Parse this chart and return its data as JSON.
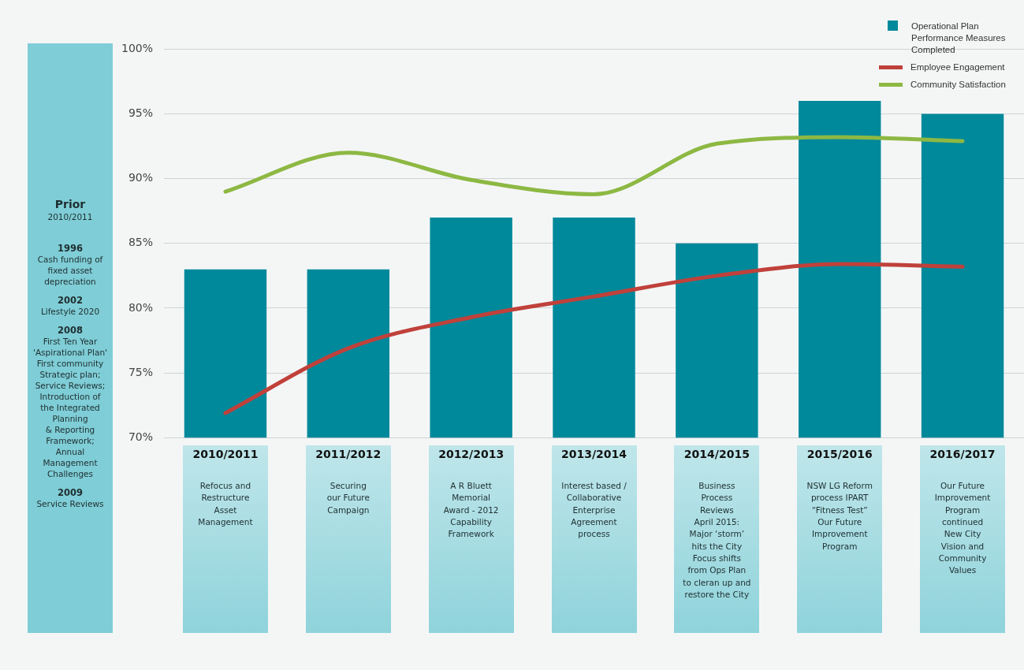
{
  "chart_data": {
    "type": "bar",
    "categories": [
      "2010/2011",
      "2011/2012",
      "2012/2013",
      "2013/2014",
      "2014/2015",
      "2015/2016",
      "2016/2017"
    ],
    "series": [
      {
        "name": "Operational  Plan Performance Measures Completed",
        "color": "#00899b",
        "values": [
          83,
          83,
          87,
          87,
          85,
          96,
          95
        ]
      },
      {
        "name": "Employee Engagement",
        "type": "line",
        "color": "#c0413b",
        "values": [
          71.9,
          76.9,
          79.3,
          80.9,
          82.5,
          83.4,
          83.2
        ]
      },
      {
        "name": "Community Satisfaction",
        "type": "line",
        "color": "#8db843",
        "values": [
          89,
          92,
          89.9,
          88.8,
          92.7,
          93.2,
          92.9
        ]
      }
    ],
    "ylim": [
      70,
      100
    ],
    "yticks": [
      {
        "value": 70,
        "label": "70%"
      },
      {
        "value": 75,
        "label": "75%"
      },
      {
        "value": 80,
        "label": "80%"
      },
      {
        "value": 85,
        "label": "85%"
      },
      {
        "value": 90,
        "label": "90%"
      },
      {
        "value": 95,
        "label": "95%"
      },
      {
        "value": 100,
        "label": "100%"
      }
    ],
    "grid": "y",
    "legend": "top right",
    "marker": "none",
    "line_style": "solid",
    "annotations": [
      "Prior\n2010/2011",
      "1996\nCash funding of\nfixed asset\ndepreciation",
      "2002\nLifestyle 2020",
      "2008\nFirst Ten Year\n'Aspirational Plan'\nFirst community\nStrategic plan;\nService Reviews;\nIntroduction of\nthe Integrated\nPlanning\n& Reporting\nFramework;\nAnnual\nManagement\nChallenges",
      "2009\nService Reviews",
      "Refocus and\nRestructure\nAsset\nManagement",
      "Securing\nour Future\nCampaign",
      "A R Bluett\nMemorial\nAward - 2012\nCapability\nFramework",
      "Interest based /\nCollaborative\nEnterprise\nAgreement\nprocess",
      "Business\nProcess\nReviews\nApril 2015:\nMajor ‘storm’\nhits the City\nFocus shifts\nfrom Ops Plan\nto cleran up and\nrestore the City",
      "NSW LG Reform\nprocess IPART\n“Fitness Test”\nOur Future\nImprovement\nProgram",
      "Our Future\nImprovement\nProgram\ncontinued\nNew City\nVision and\nCommunity\nValues"
    ]
  }
}
